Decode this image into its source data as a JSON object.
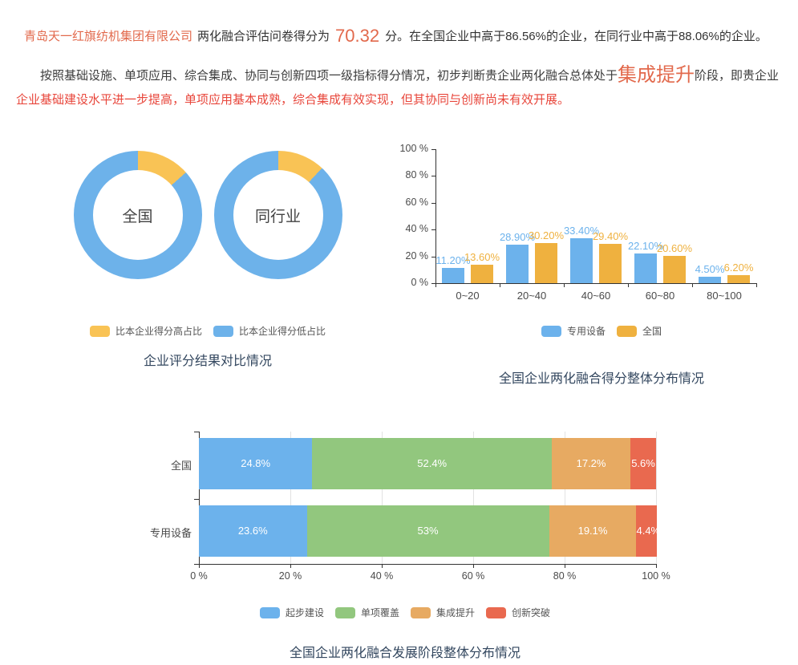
{
  "summary": {
    "company": "青岛天一红旗纺机集团有限公司",
    "score_prefix": "两化融合评估问卷得分为",
    "score": "70.32",
    "score_suffix": "分。在全国企业中高于86.56%的企业，在同行业中高于88.06%的企业。",
    "analysis_lead": "按照基础设施、单项应用、综合集成、协同与创新四项一级指标得分情况，初步判断贵企业两化融合总体处于",
    "stage": "集成提升",
    "analysis_mid": "阶段，即贵企业",
    "analysis_detail": "企业基础建设水平进一步提高，单项应用基本成熟，综合集成有效实现，但其协同与创新尚未有效开展。",
    "colors": {
      "accent": "#e2694c",
      "warning_red": "#e8463b",
      "dark": "#3c3c3c"
    }
  },
  "chart_data": [
    {
      "id": "donut-comparison",
      "type": "pie",
      "title": "企业评分结果对比情况",
      "legend_position": "bottom",
      "legend": [
        {
          "label": "比本企业得分高占比",
          "color": "#f9c355"
        },
        {
          "label": "比本企业得分低占比",
          "color": "#6db2ea"
        }
      ],
      "donuts": [
        {
          "label": "全国",
          "slices": [
            {
              "name": "比本企业得分高占比",
              "value": 13.44,
              "color": "#f9c355"
            },
            {
              "name": "比本企业得分低占比",
              "value": 86.56,
              "color": "#6db2ea"
            }
          ]
        },
        {
          "label": "同行业",
          "slices": [
            {
              "name": "比本企业得分高占比",
              "value": 11.94,
              "color": "#f9c355"
            },
            {
              "name": "比本企业得分低占比",
              "value": 88.06,
              "color": "#6db2ea"
            }
          ]
        }
      ]
    },
    {
      "id": "score-distribution",
      "type": "bar",
      "title": "全国企业两化融合得分整体分布情况",
      "categories": [
        "0~20",
        "20~40",
        "40~60",
        "60~80",
        "80~100"
      ],
      "series": [
        {
          "name": "专用设备",
          "color": "#6cb2ec",
          "values": [
            11.2,
            28.9,
            33.4,
            22.1,
            4.5
          ],
          "labels": [
            "11.20%",
            "28.90%",
            "33.40%",
            "22.10%",
            "4.50%"
          ]
        },
        {
          "name": "全国",
          "color": "#efb13f",
          "values": [
            13.6,
            30.2,
            29.4,
            20.6,
            6.2
          ],
          "labels": [
            "13.60%",
            "30.20%",
            "29.40%",
            "20.60%",
            "6.20%"
          ]
        }
      ],
      "ylim": [
        0,
        100
      ],
      "yticks": [
        0,
        20,
        40,
        60,
        80,
        100
      ],
      "tick_suffix": " %",
      "grid": false,
      "legend_position": "bottom"
    },
    {
      "id": "stage-distribution",
      "type": "stacked-bar-horizontal",
      "title": "全国企业两化融合发展阶段整体分布情况",
      "categories": [
        "全国",
        "专用设备"
      ],
      "series": [
        {
          "name": "起步建设",
          "color": "#6cb2ec",
          "values": [
            24.8,
            23.6
          ],
          "labels": [
            "24.8%",
            "23.6%"
          ]
        },
        {
          "name": "单项覆盖",
          "color": "#92c77e",
          "values": [
            52.4,
            53
          ],
          "labels": [
            "52.4%",
            "53%"
          ]
        },
        {
          "name": "集成提升",
          "color": "#e7aa62",
          "values": [
            17.2,
            19.1
          ],
          "labels": [
            "17.2%",
            "19.1%"
          ]
        },
        {
          "name": "创新突破",
          "color": "#e9694f",
          "values": [
            5.6,
            4.4
          ],
          "labels": [
            "5.6%",
            "4.4%"
          ]
        }
      ],
      "xlim": [
        0,
        100
      ],
      "xticks": [
        0,
        20,
        40,
        60,
        80,
        100
      ],
      "tick_suffix": " %",
      "grid": true,
      "legend_position": "bottom"
    }
  ]
}
